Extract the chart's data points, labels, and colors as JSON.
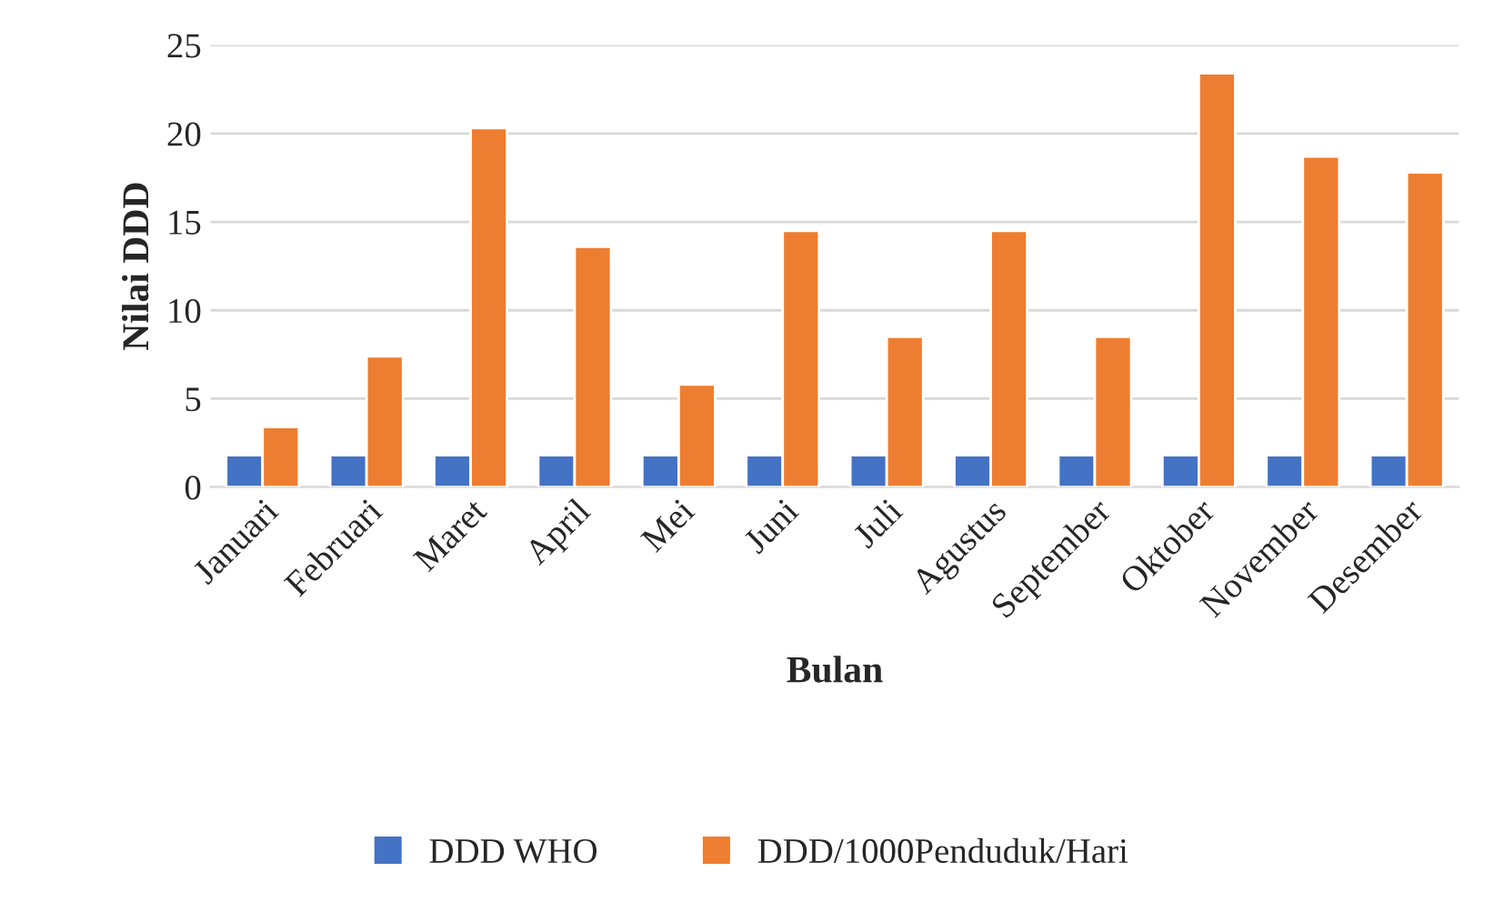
{
  "chart_data": {
    "type": "bar",
    "xlabel": "Bulan",
    "ylabel": "Nilai DDD",
    "categories": [
      "Januari",
      "Februari",
      "Maret",
      "April",
      "Mei",
      "Juni",
      "Juli",
      "Agustus",
      "September",
      "Oktober",
      "November",
      "Desember"
    ],
    "series": [
      {
        "name": "DDD WHO",
        "color": "#4472c4",
        "values": [
          1.8,
          1.8,
          1.8,
          1.8,
          1.8,
          1.8,
          1.8,
          1.8,
          1.8,
          1.8,
          1.8,
          1.8
        ]
      },
      {
        "name": "DDD/1000Penduduk/Hari",
        "color": "#ed7d31",
        "values": [
          3.4,
          7.4,
          20.3,
          13.6,
          5.8,
          14.5,
          8.5,
          14.5,
          8.5,
          23.4,
          18.7,
          17.8
        ]
      }
    ],
    "ylim": [
      0,
      25
    ],
    "yticks": [
      0,
      5,
      10,
      15,
      20,
      25
    ],
    "grid": "y",
    "legend": "bottom"
  }
}
